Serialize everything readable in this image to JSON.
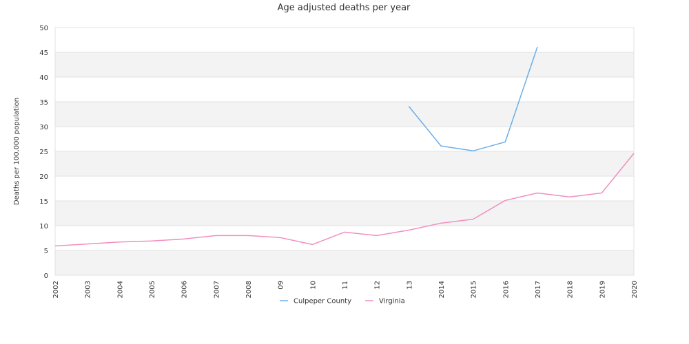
{
  "chart_data": {
    "type": "line",
    "title": "Age adjusted deaths per year",
    "xlabel": "",
    "ylabel": "Deaths per 100,000 population",
    "ylim": [
      0,
      50
    ],
    "yticks": [
      0,
      5,
      10,
      15,
      20,
      25,
      30,
      35,
      40,
      45,
      50
    ],
    "categories": [
      "2002",
      "2003",
      "2004",
      "2005",
      "2006",
      "2007",
      "2008",
      "09",
      "10",
      "11",
      "12",
      "13",
      "2014",
      "2015",
      "2016",
      "2017",
      "2018",
      "2019",
      "2020"
    ],
    "grid": true,
    "legend_position": "bottom",
    "series": [
      {
        "name": "Culpeper County",
        "color": "#6aaee8",
        "values": [
          null,
          null,
          null,
          null,
          null,
          null,
          null,
          null,
          null,
          null,
          null,
          34.1,
          26.1,
          25.1,
          26.9,
          46.1,
          null,
          null,
          null
        ]
      },
      {
        "name": "Virginia",
        "color": "#f08fbf",
        "values": [
          5.9,
          6.3,
          6.7,
          6.9,
          7.3,
          8.0,
          8.0,
          7.6,
          6.2,
          8.7,
          8.0,
          9.1,
          10.5,
          11.3,
          15.1,
          16.6,
          15.8,
          16.6,
          24.6
        ]
      }
    ]
  }
}
